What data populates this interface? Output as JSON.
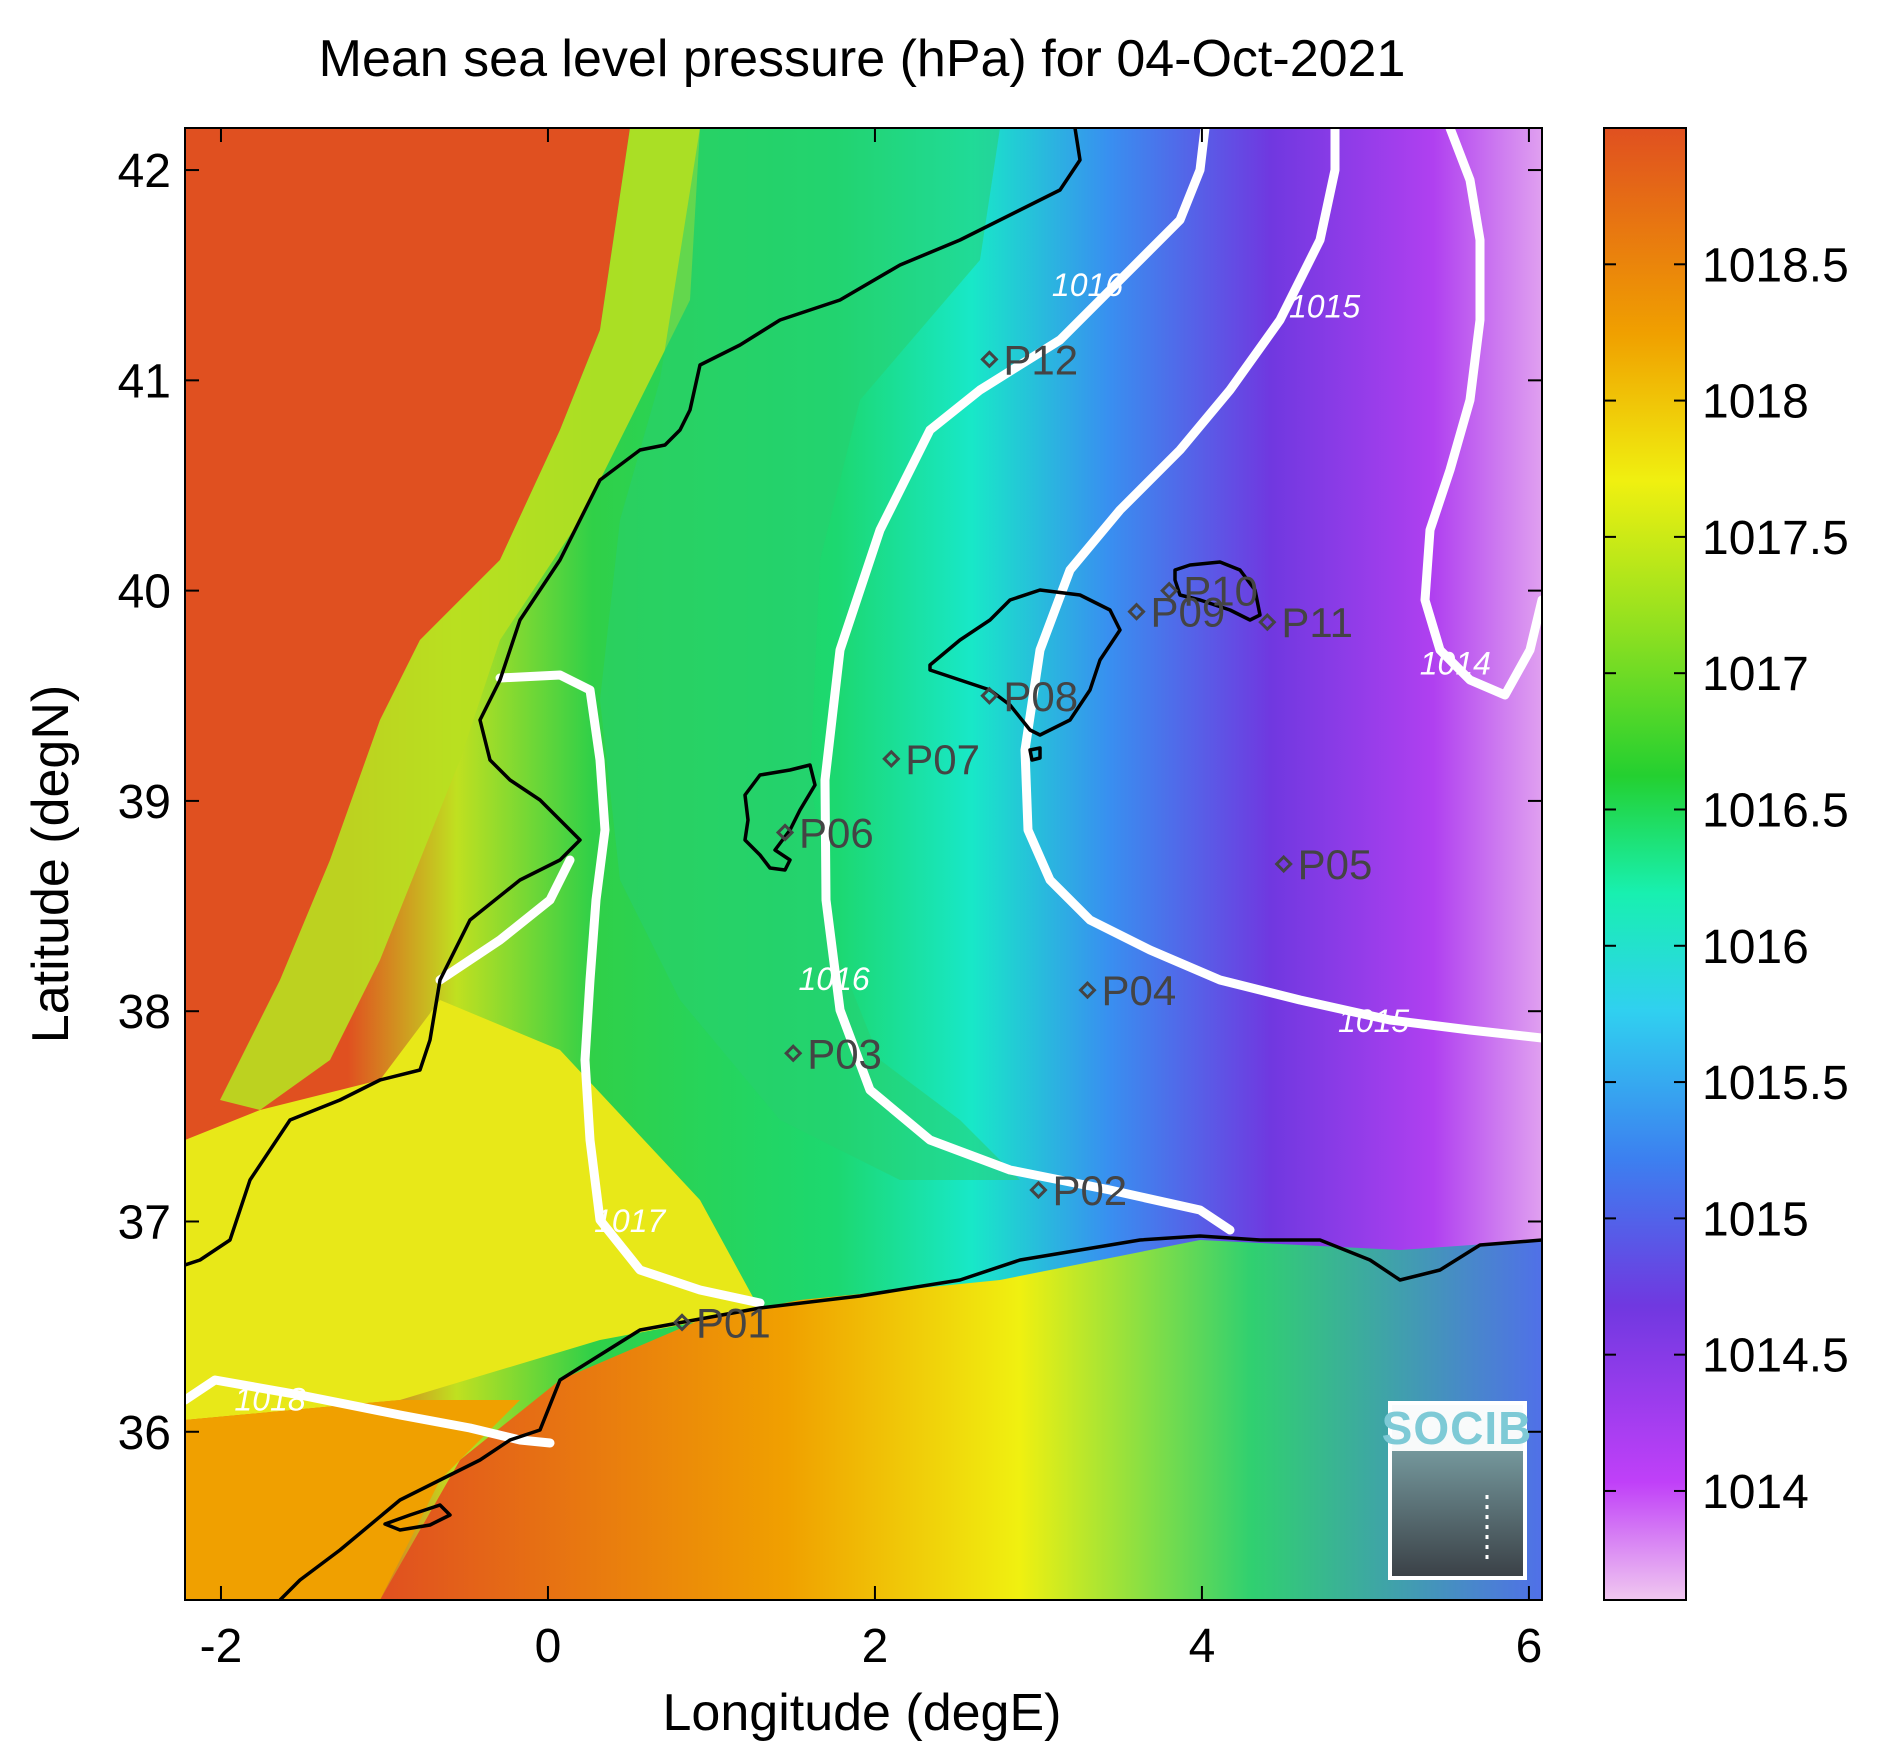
{
  "title": "Mean sea level pressure (hPa) for 04-Oct-2021",
  "xlabel": "Longitude (degE)",
  "ylabel": "Latitude (degN)",
  "logo_text": "SOCIB",
  "map_data": {
    "type": "filled-contour-map",
    "variable": "mean sea level pressure",
    "units": "hPa",
    "date": "04-Oct-2021",
    "xlim": [
      -2.2,
      6.1
    ],
    "ylim": [
      35.2,
      42.2
    ],
    "x_ticks": [
      -2,
      0,
      2,
      4,
      6
    ],
    "x_tick_labels": [
      "-2",
      "0",
      "2",
      "4",
      "6"
    ],
    "y_ticks": [
      36,
      37,
      38,
      39,
      40,
      41,
      42
    ],
    "y_tick_labels": [
      "36",
      "37",
      "38",
      "39",
      "40",
      "41",
      "42"
    ],
    "colorbar": {
      "range": [
        1013.6,
        1019.0
      ],
      "ticks": [
        1014,
        1014.5,
        1015,
        1015.5,
        1016,
        1016.5,
        1017,
        1017.5,
        1018,
        1018.5
      ],
      "tick_labels": [
        "1014",
        "1014.5",
        "1015",
        "1015.5",
        "1016",
        "1016.5",
        "1017",
        "1017.5",
        "1018",
        "1018.5"
      ],
      "colors": [
        "#f0c8f0",
        "#c040f8",
        "#7038e0",
        "#3c80f0",
        "#30d0f0",
        "#18f0b0",
        "#24d030",
        "#90e020",
        "#f0f010",
        "#f0a000",
        "#e05020"
      ]
    },
    "contour_labels": [
      {
        "value": "1018",
        "lon": -1.7,
        "lat": 36.1
      },
      {
        "value": "1017",
        "lon": 0.5,
        "lat": 36.95
      },
      {
        "value": "1016",
        "lon": 1.75,
        "lat": 38.1
      },
      {
        "value": "1016",
        "lon": 3.3,
        "lat": 41.4
      },
      {
        "value": "1015",
        "lon": 4.75,
        "lat": 41.3
      },
      {
        "value": "1015",
        "lon": 5.05,
        "lat": 37.9
      },
      {
        "value": "1014",
        "lon": 5.55,
        "lat": 39.6
      }
    ],
    "stations": [
      {
        "name": "P01",
        "lon": 0.82,
        "lat": 36.52
      },
      {
        "name": "P02",
        "lon": 3.0,
        "lat": 37.15
      },
      {
        "name": "P03",
        "lon": 1.5,
        "lat": 37.8
      },
      {
        "name": "P04",
        "lon": 3.3,
        "lat": 38.1
      },
      {
        "name": "P05",
        "lon": 4.5,
        "lat": 38.7
      },
      {
        "name": "P06",
        "lon": 1.45,
        "lat": 38.85
      },
      {
        "name": "P07",
        "lon": 2.1,
        "lat": 39.2
      },
      {
        "name": "P08",
        "lon": 2.7,
        "lat": 39.5
      },
      {
        "name": "P09",
        "lon": 3.6,
        "lat": 39.9
      },
      {
        "name": "P10",
        "lon": 3.8,
        "lat": 40.0
      },
      {
        "name": "P11",
        "lon": 4.4,
        "lat": 39.85
      },
      {
        "name": "P12",
        "lon": 2.7,
        "lat": 41.1
      }
    ]
  }
}
